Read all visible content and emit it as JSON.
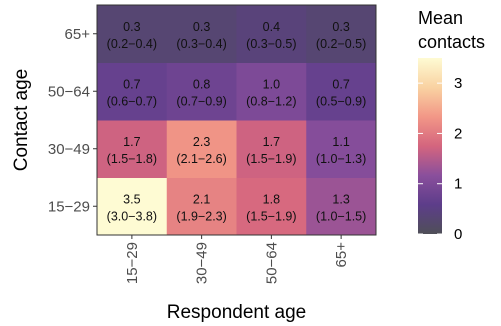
{
  "chart_data": {
    "type": "heatmap",
    "title": "",
    "xlabel": "Respondent age",
    "ylabel": "Contact age",
    "x_categories": [
      "15−29",
      "30−49",
      "50−64",
      "65+"
    ],
    "y_categories": [
      "15−29",
      "30−49",
      "50−64",
      "65+"
    ],
    "cells": [
      {
        "x": "15−29",
        "y": "15−29",
        "value": 3.5,
        "ci": "(3.0−3.8)"
      },
      {
        "x": "30−49",
        "y": "15−29",
        "value": 2.1,
        "ci": "(1.9−2.3)"
      },
      {
        "x": "50−64",
        "y": "15−29",
        "value": 1.8,
        "ci": "(1.5−1.9)"
      },
      {
        "x": "65+",
        "y": "15−29",
        "value": 1.3,
        "ci": "(1.0−1.5)"
      },
      {
        "x": "15−29",
        "y": "30−49",
        "value": 1.7,
        "ci": "(1.5−1.8)"
      },
      {
        "x": "30−49",
        "y": "30−49",
        "value": 2.3,
        "ci": "(2.1−2.6)"
      },
      {
        "x": "50−64",
        "y": "30−49",
        "value": 1.7,
        "ci": "(1.5−1.9)"
      },
      {
        "x": "65+",
        "y": "30−49",
        "value": 1.1,
        "ci": "(1.0−1.3)"
      },
      {
        "x": "15−29",
        "y": "50−64",
        "value": 0.7,
        "ci": "(0.6−0.7)"
      },
      {
        "x": "30−49",
        "y": "50−64",
        "value": 0.8,
        "ci": "(0.7−0.9)"
      },
      {
        "x": "50−64",
        "y": "50−64",
        "value": 1.0,
        "ci": "(0.8−1.2)"
      },
      {
        "x": "65+",
        "y": "50−64",
        "value": 0.7,
        "ci": "(0.5−0.9)"
      },
      {
        "x": "15−29",
        "y": "65+",
        "value": 0.3,
        "ci": "(0.2−0.4)"
      },
      {
        "x": "30−49",
        "y": "65+",
        "value": 0.3,
        "ci": "(0.3−0.4)"
      },
      {
        "x": "50−64",
        "y": "65+",
        "value": 0.4,
        "ci": "(0.3−0.5)"
      },
      {
        "x": "65+",
        "y": "65+",
        "value": 0.3,
        "ci": "(0.2−0.5)"
      }
    ],
    "colorbar": {
      "title_lines": [
        "Mean",
        "contacts"
      ],
      "min": 0,
      "max": 3.5,
      "ticks": [
        0,
        1,
        2,
        3
      ],
      "colormap": [
        "#4f4f58",
        "#5d3d8a",
        "#8a4f9c",
        "#d4657e",
        "#f29787",
        "#f9d2a2",
        "#fefbd3"
      ]
    },
    "legend_position": "right",
    "grid": false
  }
}
